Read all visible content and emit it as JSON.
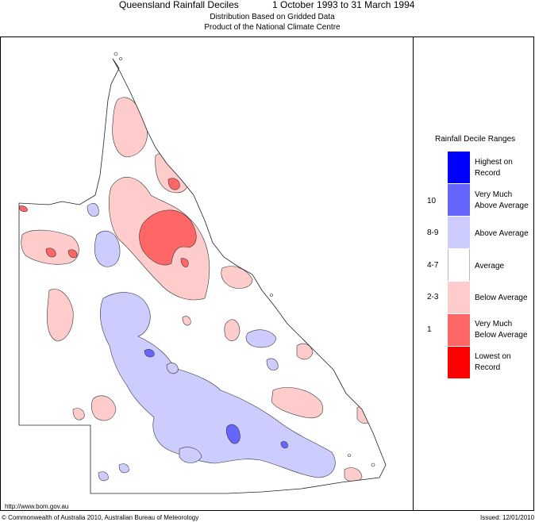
{
  "header": {
    "title": "Queensland Rainfall Deciles",
    "date_range": "1 October 1993 to 31 March 1994",
    "subtitle_1": "Distribution Based on Gridded Data",
    "subtitle_2": "Product of the National Climate Centre"
  },
  "legend": {
    "title": "Rainfall Decile Ranges",
    "items": [
      {
        "label_1": "Highest on",
        "label_2": "Record",
        "decile": "",
        "color": "#0000ff"
      },
      {
        "label_1": "Very Much",
        "label_2": "Above Average",
        "decile": "10",
        "color": "#6666ff"
      },
      {
        "label_1": "Above Average",
        "label_2": "",
        "decile": "8-9",
        "color": "#ccccff"
      },
      {
        "label_1": "Average",
        "label_2": "",
        "decile": "4-7",
        "color": "#ffffff"
      },
      {
        "label_1": "Below Average",
        "label_2": "",
        "decile": "2-3",
        "color": "#ffcccc"
      },
      {
        "label_1": "Very Much",
        "label_2": "Below Average",
        "decile": "1",
        "color": "#ff6666"
      },
      {
        "label_1": "Lowest on",
        "label_2": "Record",
        "decile": "",
        "color": "#ff0000"
      }
    ]
  },
  "footer": {
    "url": "http://www.bom.gov.au",
    "copyright": "© Commonwealth of Australia 2010, Australian Bureau of Meteorology",
    "issued": "Issued: 12/01/2010"
  }
}
